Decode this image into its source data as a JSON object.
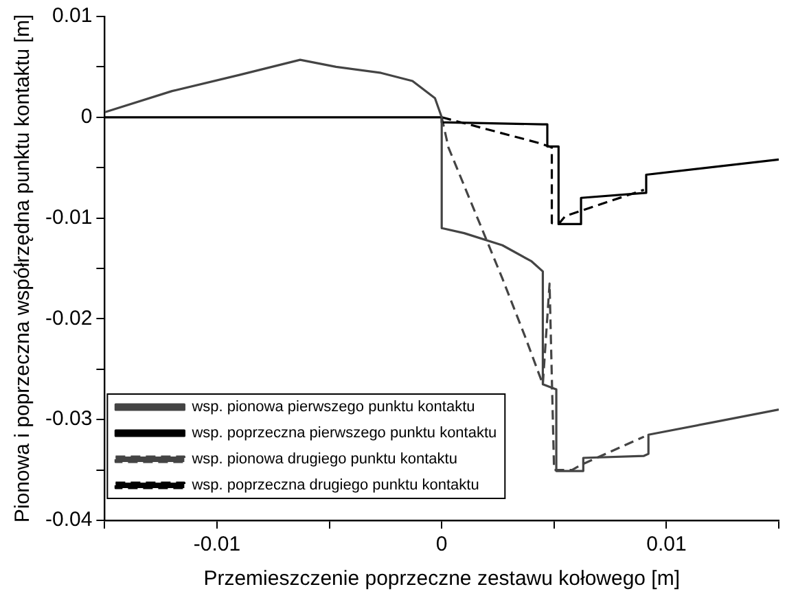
{
  "chart_data": {
    "type": "line",
    "xlabel": "Przemieszczenie poprzeczne zestawu kołowego [m]",
    "ylabel": "Pionowa i poprzeczna współrzędna punktu kontaktu [m]",
    "xlim": [
      -0.015,
      0.015
    ],
    "xticks": [
      {
        "value": -0.015,
        "label": null
      },
      -0.01,
      {
        "value": -0.005,
        "label": null
      },
      0,
      {
        "value": 0.005,
        "label": null
      },
      0.01,
      {
        "value": 0.015,
        "label": null
      }
    ],
    "ylim": [
      -0.04,
      0.01
    ],
    "yticks": [
      -0.04,
      {
        "value": -0.035,
        "label": null
      },
      -0.03,
      {
        "value": -0.025,
        "label": null
      },
      -0.02,
      {
        "value": -0.015,
        "label": null
      },
      -0.01,
      {
        "value": -0.005,
        "label": null
      },
      0,
      {
        "value": 0.005,
        "label": null
      },
      0.01
    ],
    "grid": false,
    "legend": "bottom left",
    "marker": "none",
    "series": [
      {
        "name": "wsp. pionowa pierwszego punktu kontaktu",
        "color": "#444444",
        "line_style": "solid",
        "x": [
          -0.015,
          -0.012,
          -0.009,
          -0.0063,
          -0.0047,
          -0.0027,
          -0.0013,
          -0.0003,
          0,
          0,
          0.001,
          0.0027,
          0.004,
          0.0045,
          0.0045,
          0.0051,
          0.0051,
          0.0063,
          0.0063,
          0.009,
          0.0092,
          0.0092,
          0.012,
          0.015
        ],
        "values": [
          0.0005,
          0.0026,
          0.0042,
          0.0057,
          0.005,
          0.0044,
          0.0036,
          0.0019,
          0,
          -0.011,
          -0.0115,
          -0.0127,
          -0.0143,
          -0.0153,
          -0.0265,
          -0.027,
          -0.0351,
          -0.0351,
          -0.0338,
          -0.0336,
          -0.0334,
          -0.0315,
          -0.0303,
          -0.029
        ]
      },
      {
        "name": "wsp. poprzeczna pierwszego punktu kontaktu",
        "color": "#000000",
        "line_style": "solid",
        "x": [
          -0.015,
          0,
          0,
          0.0045,
          0.0047,
          0.0047,
          0.0052,
          0.0052,
          0.0062,
          0.0062,
          0.0091,
          0.0091,
          0.015
        ],
        "values": [
          0,
          0,
          -0.0005,
          -0.0007,
          -0.0007,
          -0.0029,
          -0.0029,
          -0.0106,
          -0.0106,
          -0.008,
          -0.0075,
          -0.0057,
          -0.0042
        ]
      },
      {
        "name": "wsp. pionowa drugiego punktu kontaktu",
        "color": "#444444",
        "line_style": "dashed",
        "x": [
          0,
          0.0003,
          0.0027,
          0.0037,
          0.0045,
          0.0048,
          0.005,
          0.0058,
          0.0062,
          0.009
        ],
        "values": [
          0,
          -0.003,
          -0.016,
          -0.0217,
          -0.0265,
          -0.0165,
          -0.035,
          -0.035,
          -0.0345,
          -0.0317
        ]
      },
      {
        "name": "wsp. poprzeczna drugiego punktu kontaktu",
        "color": "#000000",
        "line_style": "dashed",
        "x": [
          0,
          0.0044,
          0.0049,
          0.0049,
          0.0052,
          0.0055,
          0.009
        ],
        "values": [
          0,
          -0.0026,
          -0.003,
          -0.0105,
          -0.0106,
          -0.0098,
          -0.0072
        ]
      }
    ]
  }
}
